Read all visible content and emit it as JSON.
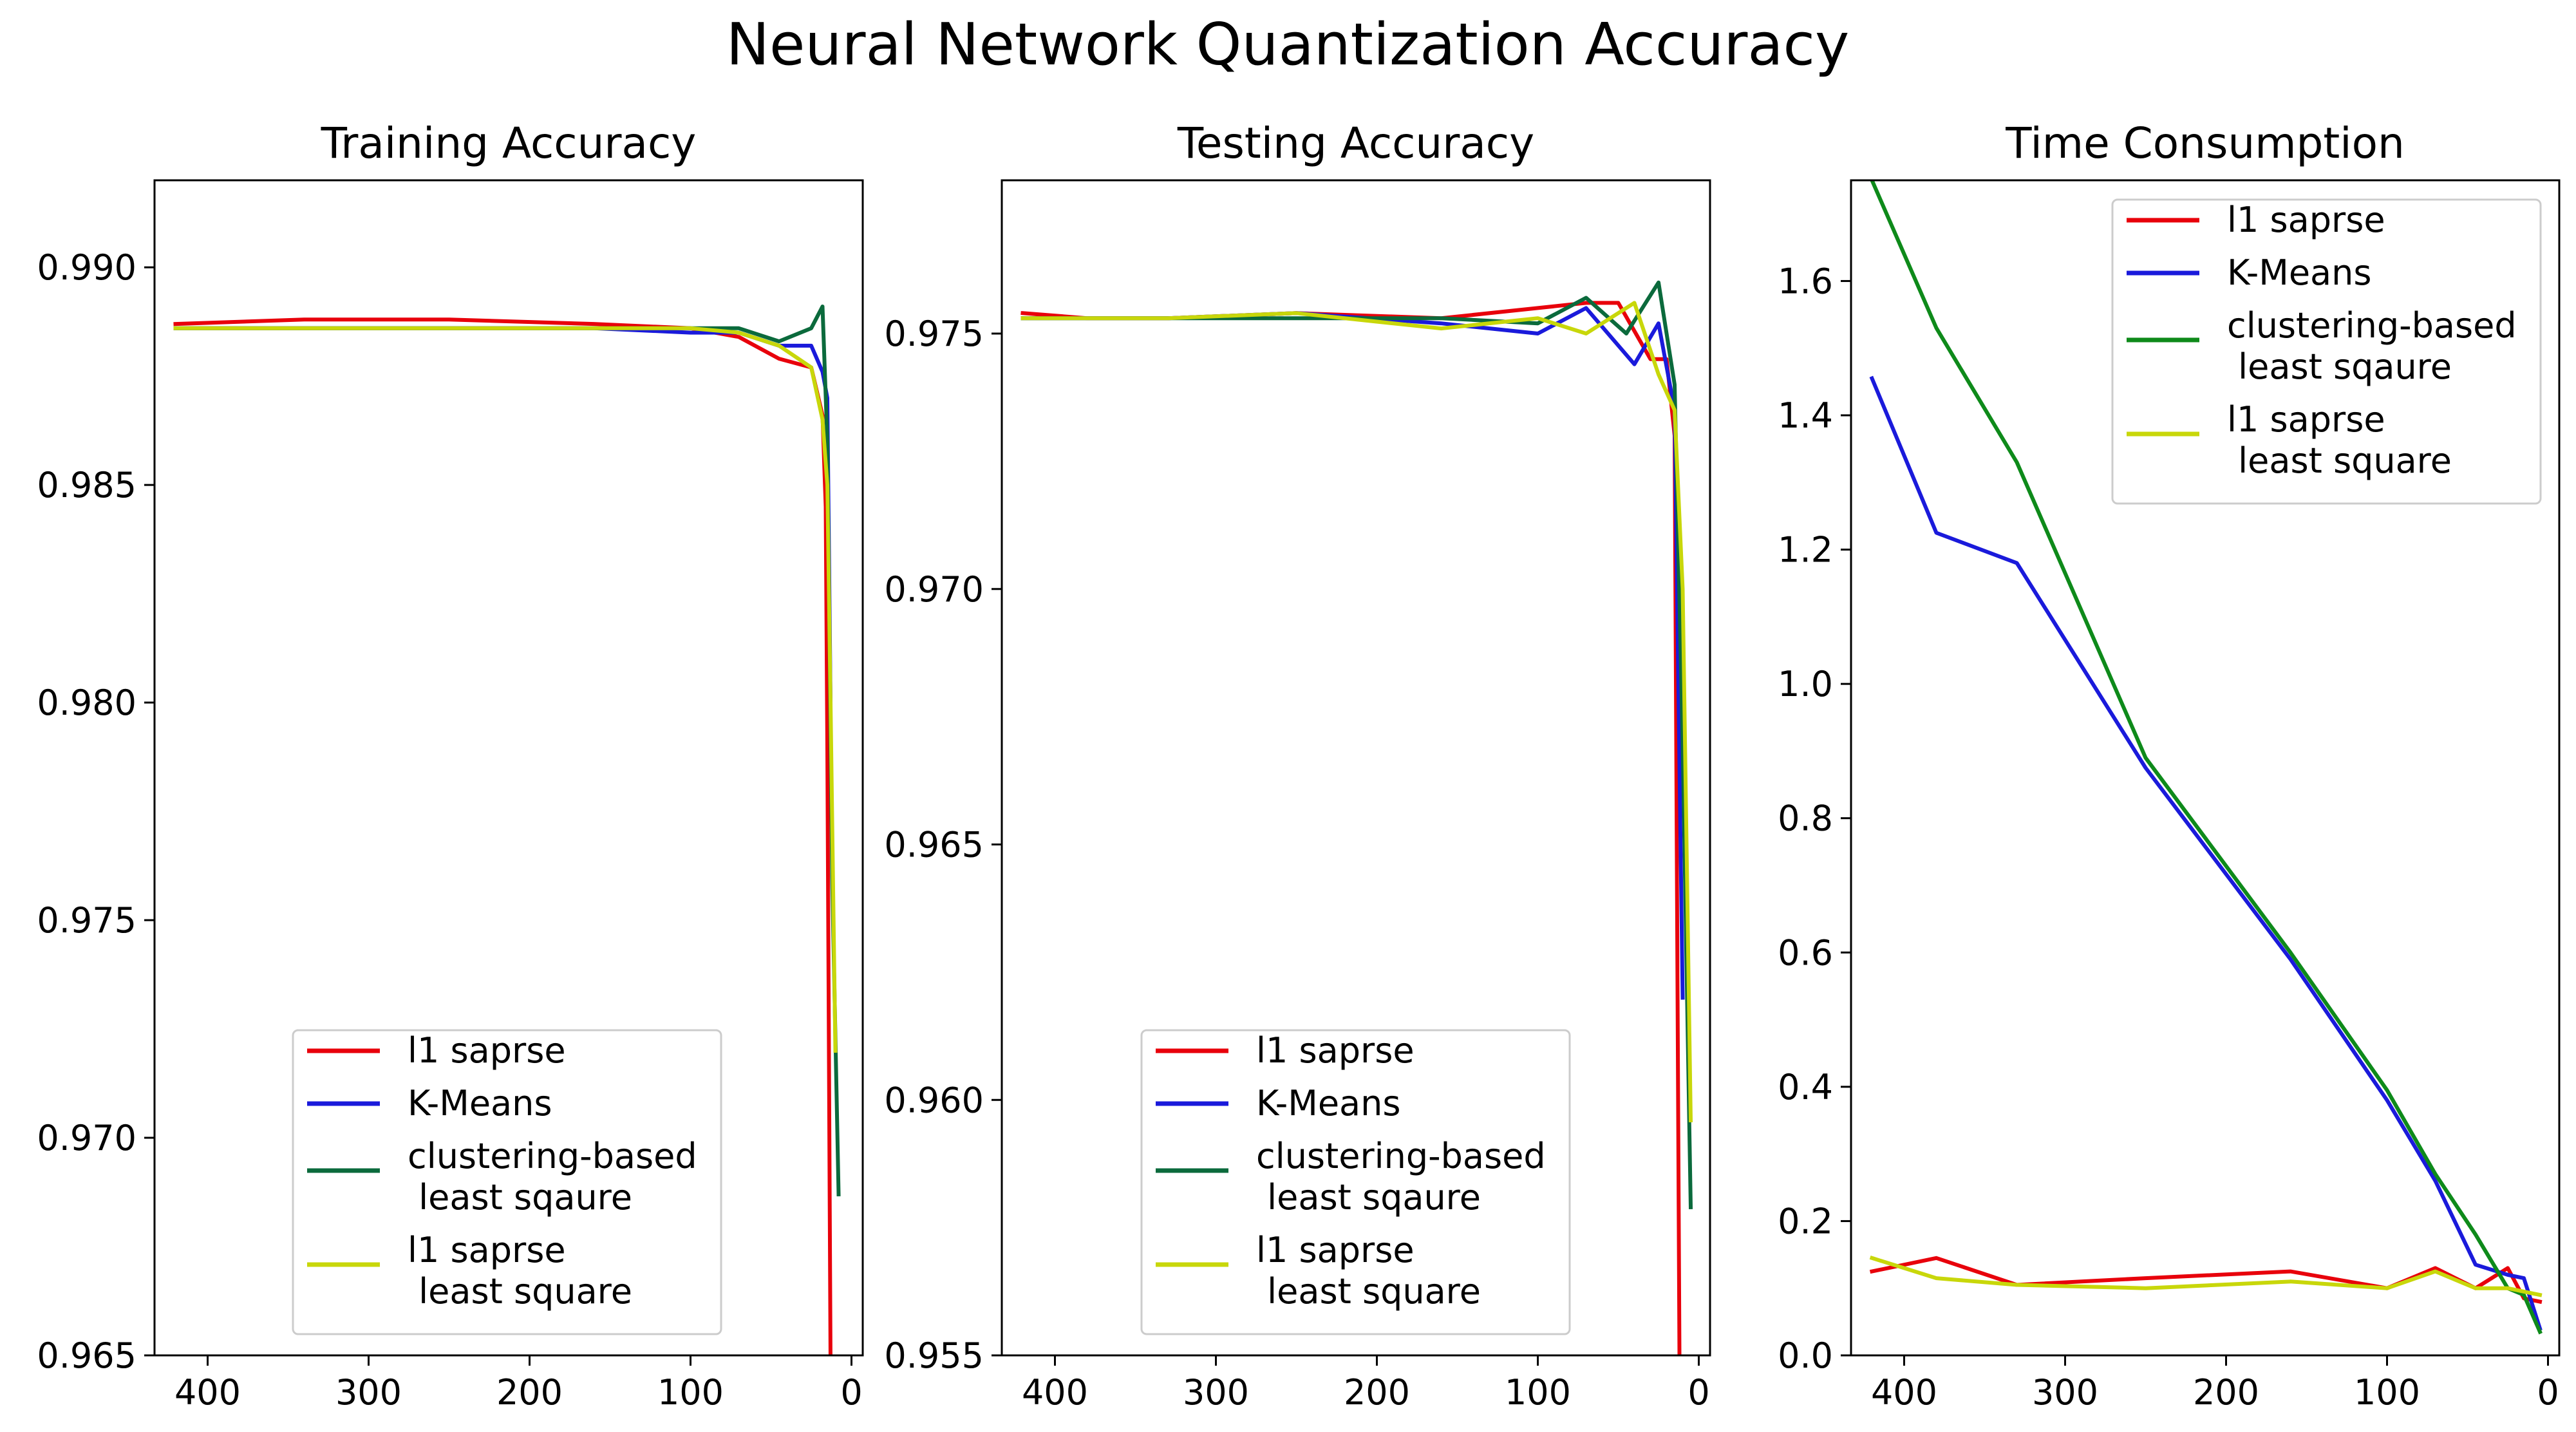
{
  "figure": {
    "title": "Neural Network Quantization Accuracy"
  },
  "chart_data": [
    {
      "type": "line",
      "title": "Training Accuracy",
      "xlabel": "",
      "ylabel": "",
      "xlim": [
        433,
        -7
      ],
      "ylim": [
        0.965,
        0.992
      ],
      "xticks": [
        400,
        300,
        200,
        100,
        0
      ],
      "xtick_labels": [
        "400",
        "300",
        "200",
        "100",
        "0"
      ],
      "yticks": [
        0.965,
        0.97,
        0.975,
        0.98,
        0.985,
        0.99
      ],
      "ytick_labels": [
        "0.965",
        "0.970",
        "0.975",
        "0.980",
        "0.985",
        "0.990"
      ],
      "grid": false,
      "legend": {
        "position": "lower center"
      },
      "series": [
        {
          "name": "l1 saprse",
          "color": "#e8000b",
          "x": [
            420,
            340,
            250,
            160,
            100,
            70,
            45,
            25,
            18,
            16,
            15,
            13
          ],
          "y": [
            0.9887,
            0.9888,
            0.9888,
            0.9887,
            0.9886,
            0.9884,
            0.9879,
            0.9877,
            0.9866,
            0.9845,
            0.979,
            0.9648
          ]
        },
        {
          "name": "K-Means",
          "color": "#1a1adb",
          "x": [
            420,
            340,
            250,
            160,
            100,
            70,
            45,
            25,
            18,
            15,
            13
          ],
          "y": [
            0.9886,
            0.9886,
            0.9886,
            0.9886,
            0.9885,
            0.9885,
            0.9882,
            0.9882,
            0.9876,
            0.987,
            0.98
          ]
        },
        {
          "name": "clustering-based\n least sqaure",
          "color": "#0b6a3c",
          "x": [
            420,
            340,
            250,
            160,
            100,
            70,
            45,
            25,
            18,
            15,
            12,
            8
          ],
          "y": [
            0.9886,
            0.9886,
            0.9886,
            0.9886,
            0.9886,
            0.9886,
            0.9883,
            0.9886,
            0.9891,
            0.986,
            0.976,
            0.9687
          ]
        },
        {
          "name": "l1 saprse\n least square",
          "color": "#c8d70a",
          "x": [
            420,
            340,
            250,
            160,
            100,
            70,
            45,
            25,
            18,
            15,
            13,
            10
          ],
          "y": [
            0.9886,
            0.9886,
            0.9886,
            0.9886,
            0.9886,
            0.9885,
            0.9882,
            0.9877,
            0.9865,
            0.985,
            0.98,
            0.972
          ]
        }
      ]
    },
    {
      "type": "line",
      "title": "Testing Accuracy",
      "xlabel": "",
      "ylabel": "",
      "xlim": [
        433,
        -7
      ],
      "ylim": [
        0.955,
        0.978
      ],
      "xticks": [
        400,
        300,
        200,
        100,
        0
      ],
      "xtick_labels": [
        "400",
        "300",
        "200",
        "100",
        "0"
      ],
      "yticks": [
        0.955,
        0.96,
        0.965,
        0.97,
        0.975
      ],
      "ytick_labels": [
        "0.955",
        "0.960",
        "0.965",
        "0.970",
        "0.975"
      ],
      "grid": false,
      "legend": {
        "position": "lower center"
      },
      "series": [
        {
          "name": "l1 saprse",
          "color": "#e8000b",
          "x": [
            420,
            380,
            330,
            250,
            160,
            100,
            70,
            50,
            30,
            20,
            15,
            12
          ],
          "y": [
            0.9754,
            0.9753,
            0.9753,
            0.9754,
            0.9753,
            0.9755,
            0.9756,
            0.9756,
            0.9745,
            0.9745,
            0.973,
            0.955
          ]
        },
        {
          "name": "K-Means",
          "color": "#1a1adb",
          "x": [
            420,
            380,
            330,
            250,
            160,
            100,
            70,
            40,
            25,
            15,
            10
          ],
          "y": [
            0.9753,
            0.9753,
            0.9753,
            0.9754,
            0.9752,
            0.975,
            0.9755,
            0.9744,
            0.9752,
            0.9735,
            0.962
          ]
        },
        {
          "name": "clustering-based\n least sqaure",
          "color": "#0b6a3c",
          "x": [
            420,
            380,
            330,
            250,
            160,
            100,
            70,
            45,
            25,
            15,
            10,
            5
          ],
          "y": [
            0.9753,
            0.9753,
            0.9753,
            0.9753,
            0.9753,
            0.9752,
            0.9757,
            0.975,
            0.976,
            0.974,
            0.967,
            0.9579
          ]
        },
        {
          "name": "l1 saprse\n least square",
          "color": "#c8d70a",
          "x": [
            420,
            380,
            330,
            250,
            160,
            100,
            70,
            40,
            25,
            15,
            10,
            5
          ],
          "y": [
            0.9753,
            0.9753,
            0.9753,
            0.9754,
            0.9751,
            0.9753,
            0.975,
            0.9756,
            0.9742,
            0.9735,
            0.97,
            0.9596
          ]
        }
      ]
    },
    {
      "type": "line",
      "title": "Time Consumption",
      "xlabel": "",
      "ylabel": "",
      "xlim": [
        433,
        -7
      ],
      "ylim": [
        0.0,
        1.75
      ],
      "xticks": [
        400,
        300,
        200,
        100,
        0
      ],
      "xtick_labels": [
        "400",
        "300",
        "200",
        "100",
        "0"
      ],
      "yticks": [
        0.0,
        0.2,
        0.4,
        0.6,
        0.8,
        1.0,
        1.2,
        1.4,
        1.6
      ],
      "ytick_labels": [
        "0.0",
        "0.2",
        "0.4",
        "0.6",
        "0.8",
        "1.0",
        "1.2",
        "1.4",
        "1.6"
      ],
      "grid": false,
      "legend": {
        "position": "upper right"
      },
      "series": [
        {
          "name": "l1 saprse",
          "color": "#e8000b",
          "x": [
            420,
            380,
            330,
            250,
            160,
            100,
            70,
            45,
            25,
            15,
            5
          ],
          "y": [
            0.125,
            0.145,
            0.105,
            0.115,
            0.125,
            0.1,
            0.13,
            0.1,
            0.13,
            0.085,
            0.08
          ]
        },
        {
          "name": "K-Means",
          "color": "#1a1adb",
          "x": [
            420,
            380,
            330,
            250,
            160,
            100,
            70,
            45,
            25,
            15,
            5
          ],
          "y": [
            1.455,
            1.225,
            1.18,
            0.875,
            0.59,
            0.38,
            0.26,
            0.135,
            0.12,
            0.115,
            0.04
          ]
        },
        {
          "name": "clustering-based\n least sqaure",
          "color": "#0e8a1a",
          "x": [
            420,
            380,
            330,
            250,
            160,
            100,
            70,
            45,
            25,
            15,
            5
          ],
          "y": [
            1.75,
            1.53,
            1.33,
            0.89,
            0.6,
            0.395,
            0.27,
            0.18,
            0.1,
            0.09,
            0.035
          ]
        },
        {
          "name": "l1 saprse\n least square",
          "color": "#c8d70a",
          "x": [
            420,
            380,
            330,
            250,
            160,
            100,
            70,
            45,
            25,
            15,
            5
          ],
          "y": [
            0.145,
            0.115,
            0.105,
            0.1,
            0.11,
            0.1,
            0.125,
            0.1,
            0.1,
            0.095,
            0.09
          ]
        }
      ]
    }
  ]
}
